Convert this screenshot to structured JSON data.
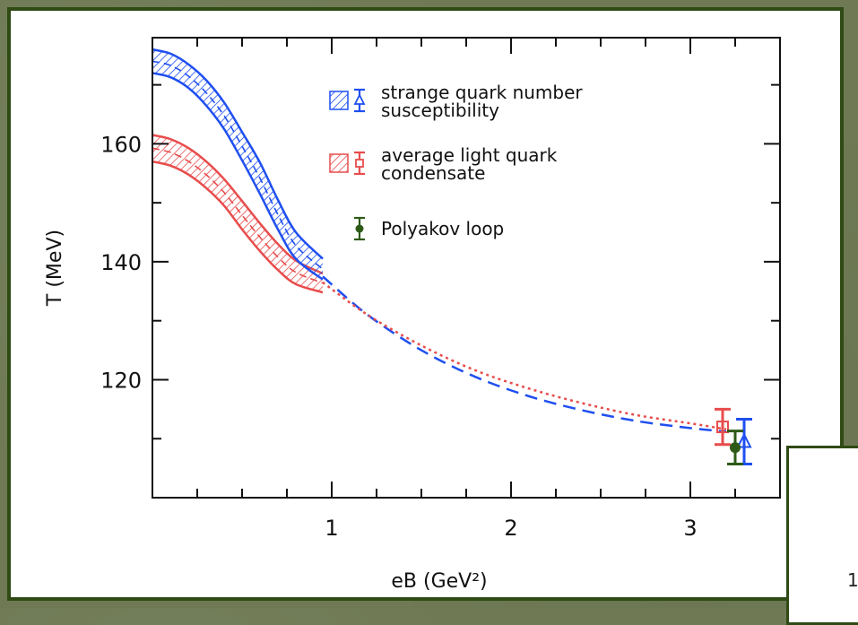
{
  "chart_data": {
    "type": "line",
    "xlabel": "eB (GeV²)",
    "ylabel": "T (MeV)",
    "xlim": [
      0,
      3.5
    ],
    "ylim": [
      100,
      178
    ],
    "xticks": [
      1,
      2,
      3
    ],
    "yticks": [
      120,
      140,
      160
    ],
    "grid": false,
    "legend_position": "top-right",
    "series": [
      {
        "name": "strange quark number susceptibility",
        "color": "#1f4ff0",
        "band": {
          "x": [
            0.0,
            0.1,
            0.2,
            0.3,
            0.4,
            0.5,
            0.6,
            0.7,
            0.8,
            0.95
          ],
          "upper": [
            176,
            175.3,
            173.5,
            170.8,
            167.0,
            162.0,
            156.8,
            150.5,
            145.0,
            140.5
          ],
          "lower": [
            172,
            171.3,
            169.5,
            166.5,
            162.5,
            157.2,
            151.5,
            145.5,
            140.5,
            137.0
          ]
        },
        "extrapolation": {
          "x": [
            0.95,
            1.2,
            1.5,
            1.8,
            2.1,
            2.4,
            2.7,
            3.0,
            3.2
          ],
          "y": [
            137.5,
            131.0,
            125.0,
            120.5,
            117.2,
            114.8,
            113.0,
            111.8,
            111.2
          ]
        },
        "point": {
          "x": 3.3,
          "y": 109.5,
          "err": 3.8
        }
      },
      {
        "name": "average light quark condensate",
        "color": "#e84c4c",
        "band": {
          "x": [
            0.0,
            0.1,
            0.2,
            0.3,
            0.4,
            0.5,
            0.6,
            0.7,
            0.8,
            0.95
          ],
          "upper": [
            161.5,
            160.8,
            159.3,
            157.0,
            154.0,
            150.3,
            146.5,
            143.0,
            140.2,
            138.0
          ],
          "lower": [
            157.0,
            156.3,
            154.8,
            152.5,
            149.5,
            145.5,
            141.8,
            138.6,
            136.2,
            134.8
          ]
        },
        "extrapolation": {
          "x": [
            0.95,
            1.2,
            1.5,
            1.8,
            2.1,
            2.4,
            2.7,
            3.0,
            3.2
          ],
          "y": [
            136.5,
            131.0,
            125.8,
            121.6,
            118.5,
            116.0,
            114.0,
            112.6,
            111.6
          ]
        },
        "point": {
          "x": 3.18,
          "y": 112.0,
          "err": 3.0
        }
      },
      {
        "name": "Polyakov loop",
        "color": "#2e5a17",
        "point": {
          "x": 3.25,
          "y": 108.5,
          "err": 2.8
        }
      }
    ],
    "legend": [
      {
        "lines": [
          "strange quark number",
          "susceptibility"
        ],
        "color": "#1f4ff0",
        "marker": "triangle"
      },
      {
        "lines": [
          "average light quark",
          "condensate"
        ],
        "color": "#e84c4c",
        "marker": "square"
      },
      {
        "lines": [
          "Polyakov loop"
        ],
        "color": "#2e5a17",
        "marker": "circle"
      }
    ]
  },
  "inset": {
    "text": "1"
  }
}
